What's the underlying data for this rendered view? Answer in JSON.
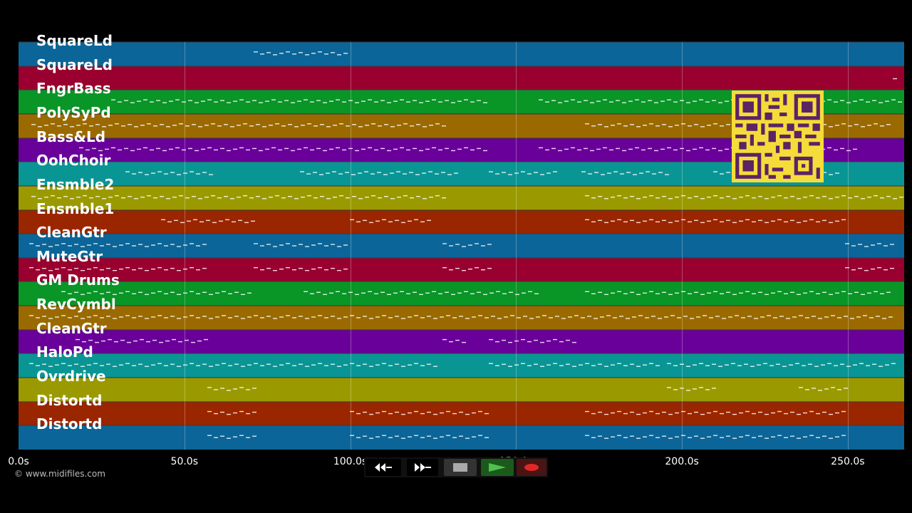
{
  "colors": {
    "background": "#000000",
    "blue": "#0b6598",
    "red": "#99002f",
    "green": "#0a9527",
    "orange": "#9a6a00",
    "purple": "#6a009a",
    "teal": "#0a9595",
    "olive": "#9a9a00",
    "rust": "#9a2600",
    "note": "#ffffff",
    "qr_bg": "#f5dc3a",
    "qr_fg": "#5a2465"
  },
  "tracks": [
    {
      "name": "SquareLd",
      "color": "#0b6598"
    },
    {
      "name": "SquareLd",
      "color": "#99002f"
    },
    {
      "name": "FngrBass",
      "color": "#0a9527"
    },
    {
      "name": "PolySyPd",
      "color": "#9a6a00"
    },
    {
      "name": "Bass&Ld",
      "color": "#6a009a"
    },
    {
      "name": "OohChoir",
      "color": "#0a9595"
    },
    {
      "name": "Ensmble2",
      "color": "#9a9a00"
    },
    {
      "name": "Ensmble1",
      "color": "#9a2600"
    },
    {
      "name": "CleanGtr",
      "color": "#0b6598"
    },
    {
      "name": "MuteGtr",
      "color": "#99002f"
    },
    {
      "name": "GM Drums",
      "color": "#0a9527"
    },
    {
      "name": "RevCymbl",
      "color": "#9a6a00"
    },
    {
      "name": "CleanGtr",
      "color": "#6a009a"
    },
    {
      "name": "HaloPd",
      "color": "#0a9595"
    },
    {
      "name": "Ovrdrive",
      "color": "#9a9a00"
    },
    {
      "name": "Distortd",
      "color": "#9a2600"
    },
    {
      "name": "Distortd",
      "color": "#0b6598"
    }
  ],
  "timeline": {
    "ticks": [
      "0.0s",
      "50.0s",
      "100.0s",
      "150.0s",
      "200.0s",
      "250.0s"
    ],
    "tick_seconds": [
      0,
      50,
      100,
      150,
      200,
      250
    ],
    "max_seconds": 267
  },
  "copyright": "© www.midifiles.com",
  "transport": {
    "rewind_icon": "rewind-icon",
    "forward_icon": "fast-forward-icon",
    "stop_icon": "stop-icon",
    "play_icon": "play-icon",
    "record_icon": "record-icon"
  }
}
